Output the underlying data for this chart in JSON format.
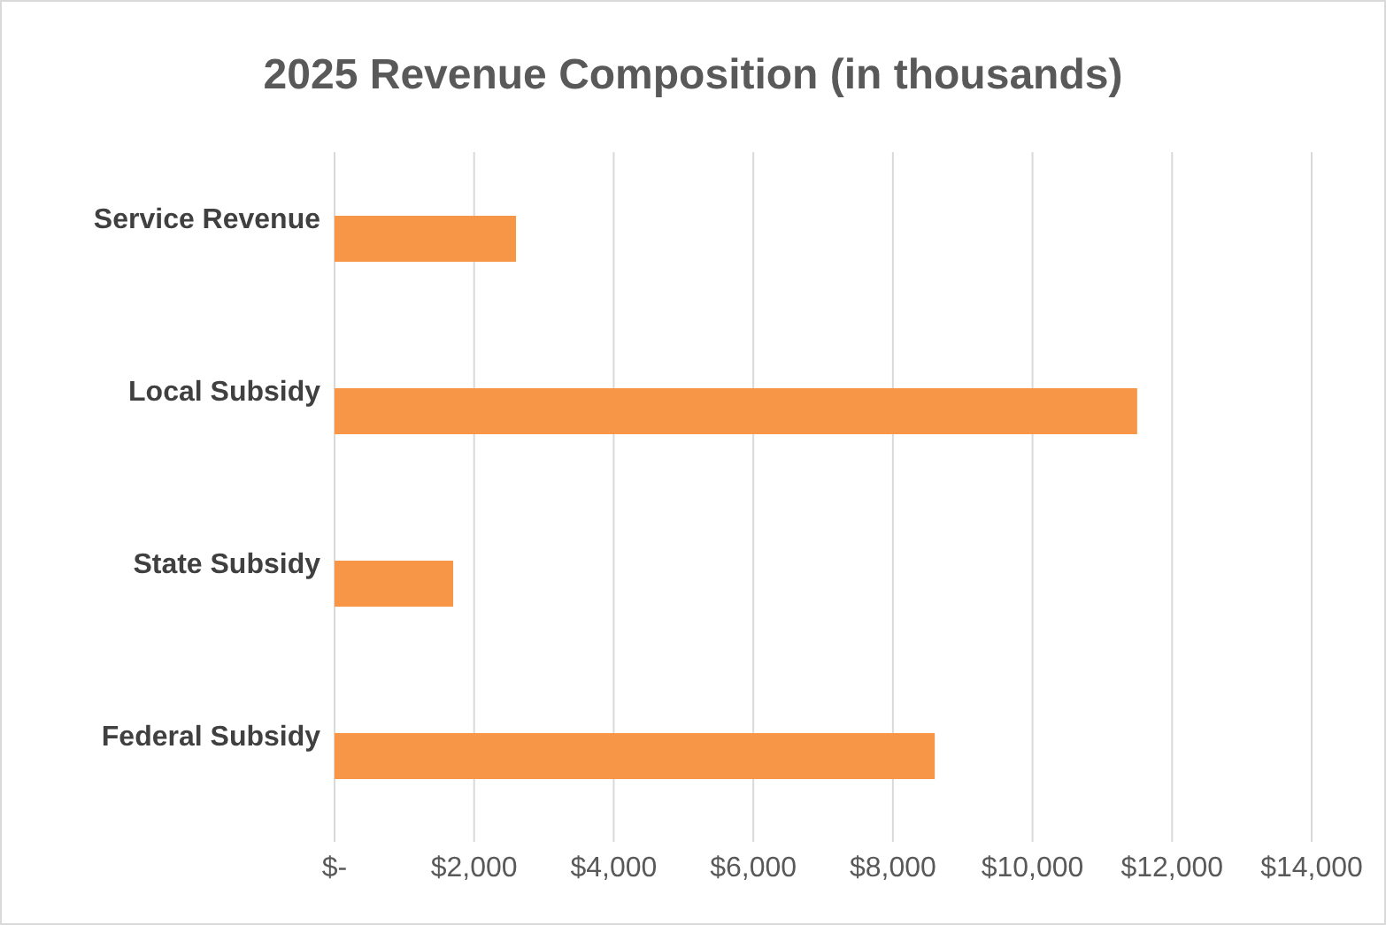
{
  "chart_data": {
    "type": "bar",
    "orientation": "horizontal",
    "title": "2025 Revenue Composition (in thousands)",
    "categories": [
      "Service Revenue",
      "Local Subsidy",
      "State Subsidy",
      "Federal Subsidy"
    ],
    "values": [
      2600,
      11500,
      1700,
      8600
    ],
    "color": "#f79646",
    "xlim": [
      0,
      14000
    ],
    "xticks": [
      {
        "value": 0,
        "label": "$-"
      },
      {
        "value": 2000,
        "label": "$2,000"
      },
      {
        "value": 4000,
        "label": "$4,000"
      },
      {
        "value": 6000,
        "label": "$6,000"
      },
      {
        "value": 8000,
        "label": "$8,000"
      },
      {
        "value": 10000,
        "label": "$10,000"
      },
      {
        "value": 12000,
        "label": "$12,000"
      },
      {
        "value": 14000,
        "label": "$14,000"
      }
    ],
    "grid": "x",
    "legend": false
  }
}
